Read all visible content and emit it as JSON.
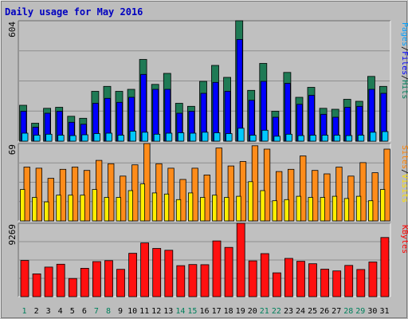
{
  "chart_data": {
    "type": "bar",
    "title": "Daily usage for May 2016",
    "days": [
      "1",
      "2",
      "3",
      "4",
      "5",
      "6",
      "7",
      "8",
      "9",
      "10",
      "11",
      "12",
      "13",
      "14",
      "15",
      "16",
      "17",
      "18",
      "19",
      "20",
      "21",
      "22",
      "23",
      "24",
      "25",
      "26",
      "27",
      "28",
      "29",
      "30",
      "31"
    ],
    "weekend_days": [
      "1",
      "7",
      "8",
      "14",
      "15",
      "21",
      "22",
      "28",
      "29"
    ],
    "grid": true,
    "panels": [
      {
        "id": "hits",
        "ymax_label": "604",
        "ymax": 604,
        "legend": [
          {
            "text": "Pages",
            "color": "#00a0ff"
          },
          {
            "text": "/",
            "color": "#000000"
          },
          {
            "text": "Files",
            "color": "#0000ff"
          },
          {
            "text": "/",
            "color": "#000000"
          },
          {
            "text": "Hits",
            "color": "#00805c"
          }
        ],
        "series": [
          {
            "name": "Hits",
            "color": "#1f7a55",
            "values": [
              180,
              90,
              165,
              170,
              125,
              115,
              250,
              275,
              250,
              260,
              410,
              285,
              340,
              190,
              175,
              300,
              380,
              320,
              604,
              255,
              390,
              150,
              345,
              220,
              270,
              165,
              160,
              210,
              200,
              325,
              275
            ]
          },
          {
            "name": "Files",
            "color": "#0000ff",
            "values": [
              150,
              70,
              140,
              150,
              95,
              85,
              190,
              215,
              195,
              220,
              335,
              260,
              260,
              140,
              150,
              240,
              295,
              250,
              510,
              205,
              300,
              120,
              290,
              185,
              230,
              135,
              120,
              170,
              175,
              260,
              240
            ]
          },
          {
            "name": "Pages",
            "color": "#00c8ff",
            "values": [
              40,
              30,
              35,
              30,
              28,
              32,
              38,
              40,
              30,
              50,
              45,
              35,
              40,
              42,
              40,
              45,
              42,
              38,
              65,
              30,
              55,
              25,
              35,
              28,
              30,
              30,
              30,
              28,
              30,
              45,
              48
            ]
          }
        ]
      },
      {
        "id": "visits",
        "ymax_label": "69",
        "ymax": 69,
        "legend": [
          {
            "text": "Sites",
            "color": "#ff8000"
          },
          {
            "text": "/",
            "color": "#000000"
          },
          {
            "text": "Visits",
            "color": "#ffe000"
          }
        ],
        "series": [
          {
            "name": "Visits",
            "color": "#ff8c1a",
            "values": [
              48,
              47,
              38,
              46,
              48,
              45,
              54,
              51,
              40,
              50,
              69,
              51,
              47,
              37,
              47,
              41,
              65,
              49,
              53,
              67,
              64,
              44,
              46,
              58,
              45,
              42,
              48,
              40,
              52,
              43,
              64
            ]
          },
          {
            "name": "Sites",
            "color": "#ffee00",
            "values": [
              28,
              21,
              17,
              23,
              23,
              23,
              28,
              21,
              21,
              27,
              33,
              25,
              24,
              19,
              25,
              21,
              23,
              21,
              22,
              35,
              27,
              18,
              19,
              22,
              21,
              21,
              22,
              20,
              22,
              18,
              28
            ]
          }
        ]
      },
      {
        "id": "kbytes",
        "ymax_label": "9269",
        "ymax": 9269,
        "legend": [
          {
            "text": "KBytes",
            "color": "#ff0000"
          }
        ],
        "series": [
          {
            "name": "KBytes",
            "color": "#ff1010",
            "values": [
              4570,
              2880,
              3740,
              4100,
              2300,
              3590,
              4430,
              4550,
              3460,
              5480,
              6790,
              6100,
              5860,
              3920,
              4060,
              4040,
              7040,
              6230,
              9269,
              4520,
              5440,
              3010,
              4840,
              4470,
              4160,
              3480,
              3250,
              3950,
              3440,
              4380,
              7480
            ]
          }
        ]
      }
    ]
  }
}
